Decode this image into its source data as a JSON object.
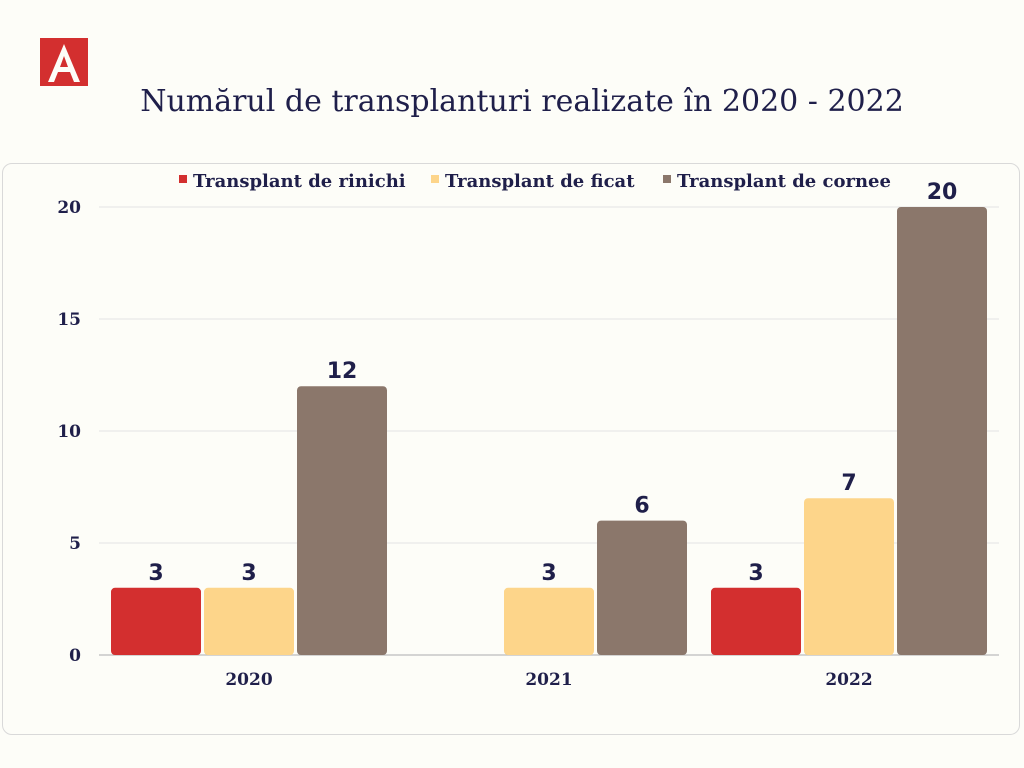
{
  "logo": {
    "letter": "A",
    "color": "#d32f2f",
    "icon": "red-square-a-logo"
  },
  "title": "Numărul de transplanturi realizate în 2020 - 2022",
  "chart_data": {
    "type": "bar",
    "title": "Numărul de transplanturi realizate în 2020 - 2022",
    "xlabel": "",
    "ylabel": "",
    "categories": [
      "2020",
      "2021",
      "2022"
    ],
    "series": [
      {
        "name": "Transplant de rinichi",
        "color": "#d32f2f",
        "values": [
          3,
          null,
          3
        ]
      },
      {
        "name": "Transplant de ficat",
        "color": "#fdd58a",
        "values": [
          3,
          3,
          7
        ]
      },
      {
        "name": "Transplant de cornee",
        "color": "#8b776b",
        "values": [
          12,
          6,
          20
        ]
      }
    ],
    "ylim": [
      0,
      20
    ],
    "yticks": [
      0,
      5,
      10,
      15,
      20
    ],
    "grid": true,
    "legend_position": "top"
  }
}
